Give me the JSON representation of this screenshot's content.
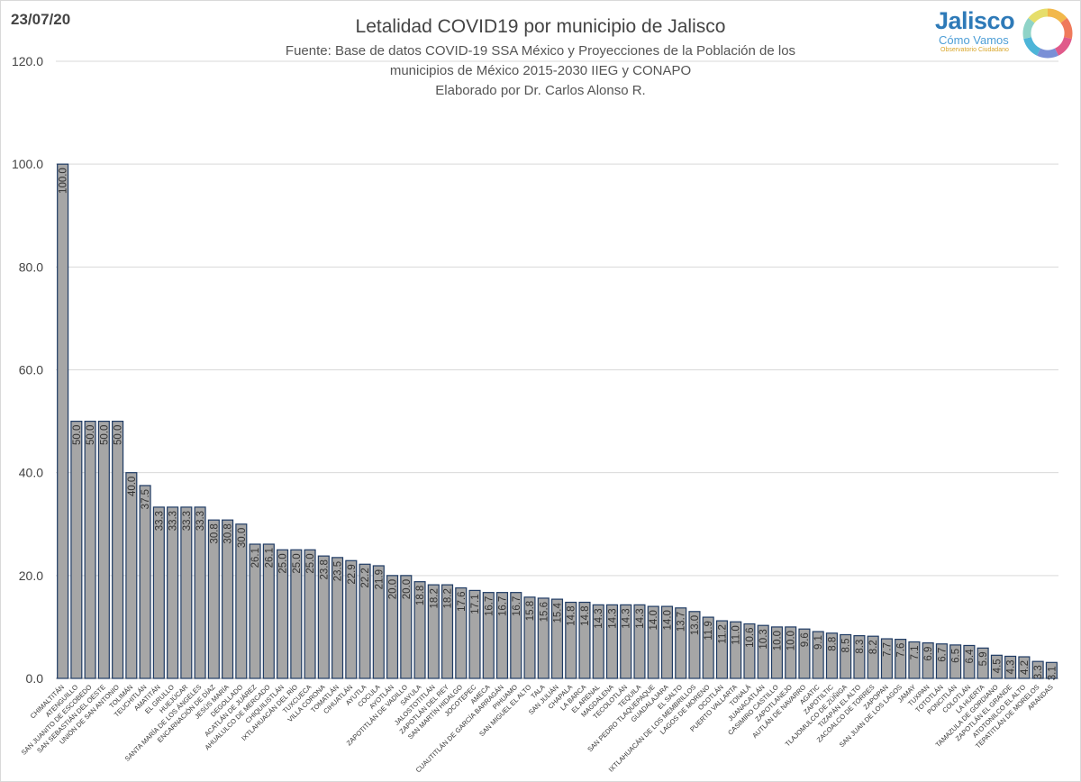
{
  "header": {
    "date": "23/07/20",
    "title": "Letalidad COVID19 por municipio de Jalisco",
    "subtitle_lines": [
      "Fuente: Base de datos COVID-19 SSA México y Proyecciones de la Población de los",
      "municipios de México 2015-2030 IIEG y CONAPO",
      "Elaborado por Dr. Carlos Alonso R."
    ]
  },
  "logo": {
    "word": "Jalisco",
    "sub": "Cómo Vamos",
    "tagline": "Observatorio Ciudadano",
    "ring_colors": [
      "#f2b84b",
      "#ef7a5b",
      "#e05a8a",
      "#7a8fd6",
      "#4db5d8",
      "#8fd3c7",
      "#e6de6b"
    ]
  },
  "colors": {
    "bar": "#a6a6a6",
    "bar_edge": "#1f3b64",
    "grid": "#d9d9d9"
  },
  "chart_data": {
    "type": "bar",
    "title": "Letalidad COVID19 por municipio de Jalisco",
    "xlabel": "",
    "ylabel": "",
    "ylim": [
      0,
      120
    ],
    "yticks": [
      "0.0",
      "20.0",
      "40.0",
      "60.0",
      "80.0",
      "100.0",
      "120.0"
    ],
    "grid": true,
    "categories": [
      "CHIMALTITÁN",
      "ATENGUILLO",
      "SAN JUANITO DE ESCOBEDO",
      "SAN SEBASTIÁN DEL OESTE",
      "UNIÓN DE SAN ANTONIO",
      "TOLIMÁN",
      "TEUCHITLÁN",
      "AMATITÁN",
      "EL GRULLO",
      "HUEJÚCAR",
      "SANTA MARÍA DE LOS ÁNGELES",
      "ENCARNACIÓN DE DÍAZ",
      "JESÚS MARÍA",
      "DEGOLLADO",
      "ACATLÁN DE JUÁREZ",
      "AHUALULCO DE MERCADO",
      "CHIQUILISTLÁN",
      "IXTLAHUACÁN DEL RÍO",
      "TUXCUECA",
      "VILLA CORONA",
      "TOMATLÁN",
      "CIHUATLÁN",
      "AYUTLA",
      "COCULA",
      "AYOTLÁN",
      "ZAPOTITLÁN DE VADILLO",
      "SAYULA",
      "JALOSTOTITLÁN",
      "ZAPOTLÁN DEL REY",
      "SAN MARTÍN HIDALGO",
      "JOCOTEPEC",
      "AMECA",
      "CUAUTITLÁN DE GARCÍA BARRAGÁN",
      "PIHUAMO",
      "SAN MIGUEL EL ALTO",
      "TALA",
      "SAN JULIÁN",
      "CHAPALA",
      "LA BARCA",
      "EL ARENAL",
      "MAGDALENA",
      "TECOLOTLÁN",
      "TEQUILA",
      "SAN PEDRO TLAQUEPAQUE",
      "GUADALAJARA",
      "EL SALTO",
      "IXTLAHUACÁN DE LOS MEMBRILLOS",
      "LAGOS DE MORENO",
      "OCOTLÁN",
      "PUERTO VALLARTA",
      "TONALÁ",
      "JUANACATLÁN",
      "CASIMIRO CASTILLO",
      "ZAPOTLANEJO",
      "AUTLÁN DE NAVARRO",
      "AGATIC",
      "ZAPOTILTIC",
      "TLAJOMULCO DE ZÚÑIGA",
      "TIZAPÁN EL ALTO",
      "ZACOALCO DE TORRES",
      "ZAPOPAN",
      "SAN JUAN DE LOS LAGOS",
      "JAMAY",
      "TUXPAN",
      "TOTOTLÁN",
      "PONCITLÁN",
      "COLOTLÁN",
      "LA HUERTA",
      "TAMAZULA DE GORDIANO",
      "ZAPOTLÁN EL GRANDE",
      "ATOTONILCO EL ALTO",
      "TEPATITLÁN DE MORELOS",
      "ARANDAS"
    ],
    "values": [
      100.0,
      50.0,
      50.0,
      50.0,
      50.0,
      40.0,
      37.5,
      33.3,
      33.3,
      33.3,
      33.3,
      30.8,
      30.8,
      30.0,
      26.1,
      26.1,
      25.0,
      25.0,
      25.0,
      23.8,
      23.5,
      22.9,
      22.2,
      21.9,
      20.0,
      20.0,
      18.8,
      18.2,
      18.2,
      17.6,
      17.1,
      16.7,
      16.7,
      16.7,
      15.8,
      15.6,
      15.4,
      14.8,
      14.8,
      14.3,
      14.3,
      14.3,
      14.3,
      14.0,
      14.0,
      13.7,
      13.0,
      11.9,
      11.2,
      11.0,
      10.6,
      10.3,
      10.0,
      10.0,
      9.6,
      9.1,
      8.8,
      8.5,
      8.3,
      8.2,
      7.7,
      7.6,
      7.1,
      6.9,
      6.7,
      6.5,
      6.4,
      5.9,
      4.5,
      4.3,
      4.2,
      3.3,
      3.1
    ],
    "data_labels": [
      "100.0",
      "50.0",
      "50.0",
      "50.0",
      "50.0",
      "40.0",
      "37.5",
      "33.3",
      "33.3",
      "33.3",
      "33.3",
      "30.8",
      "30.8",
      "30.0",
      "26.1",
      "26.1",
      "25.0",
      "25.0",
      "25.0",
      "23.8",
      "23.5",
      "22.9",
      "22.2",
      "21.9",
      "20.0",
      "20.0",
      "18.8",
      "18.2",
      "18.2",
      "17.6",
      "17.1",
      "16.7",
      "16.7",
      "16.7",
      "15.8",
      "15.6",
      "15.4",
      "14.8",
      "14.8",
      "14.3",
      "14.3",
      "14.3",
      "14.3",
      "14.0",
      "14.0",
      "13.7",
      "13.0",
      "11.9",
      "11.2",
      "11.0",
      "10.6",
      "10.3",
      "10.0",
      "10.0",
      "9.6",
      "9.1",
      "8.8",
      "8.5",
      "8.3",
      "8.2",
      "7.7",
      "7.6",
      "7.1",
      "6.9",
      "6.7",
      "6.5",
      "6.4",
      "5.9",
      "4.5",
      "4.3",
      "4.2",
      "3.3",
      "3.1"
    ]
  }
}
